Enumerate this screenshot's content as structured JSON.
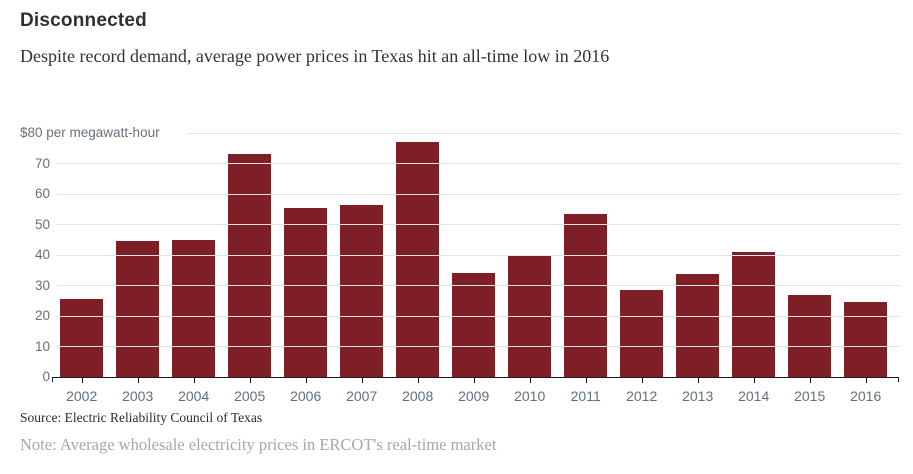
{
  "header": {
    "title": "Disconnected",
    "subtitle": "Despite record demand, average power prices in Texas hit an all-time low in 2016"
  },
  "chart_data": {
    "type": "bar",
    "title": "Disconnected",
    "subtitle": "Despite record demand, average power prices in Texas hit an all-time low in 2016",
    "categories": [
      "2002",
      "2003",
      "2004",
      "2005",
      "2006",
      "2007",
      "2008",
      "2009",
      "2010",
      "2011",
      "2012",
      "2013",
      "2014",
      "2015",
      "2016"
    ],
    "values": [
      25.7,
      44.6,
      45.0,
      73.0,
      55.3,
      56.5,
      77.2,
      34.1,
      39.9,
      53.4,
      28.4,
      33.9,
      40.9,
      26.8,
      24.7
    ],
    "ylabel_top": "$80 per megawatt-hour",
    "yticks": [
      0,
      10,
      20,
      30,
      40,
      50,
      60,
      70
    ],
    "ylim": [
      0,
      80
    ],
    "grid": true,
    "legend": "none",
    "bar_color": "#7e1e26",
    "grid_color": "#e4e4e4",
    "axis_color": "#1b1b1b",
    "ytick_label_color": "#67707a",
    "xtick_label_color": "#5e7081"
  },
  "footer": {
    "source": "Source: Electric Reliability Council of Texas",
    "note": "Note: Average wholesale electricity prices in ERCOT's real-time market"
  }
}
